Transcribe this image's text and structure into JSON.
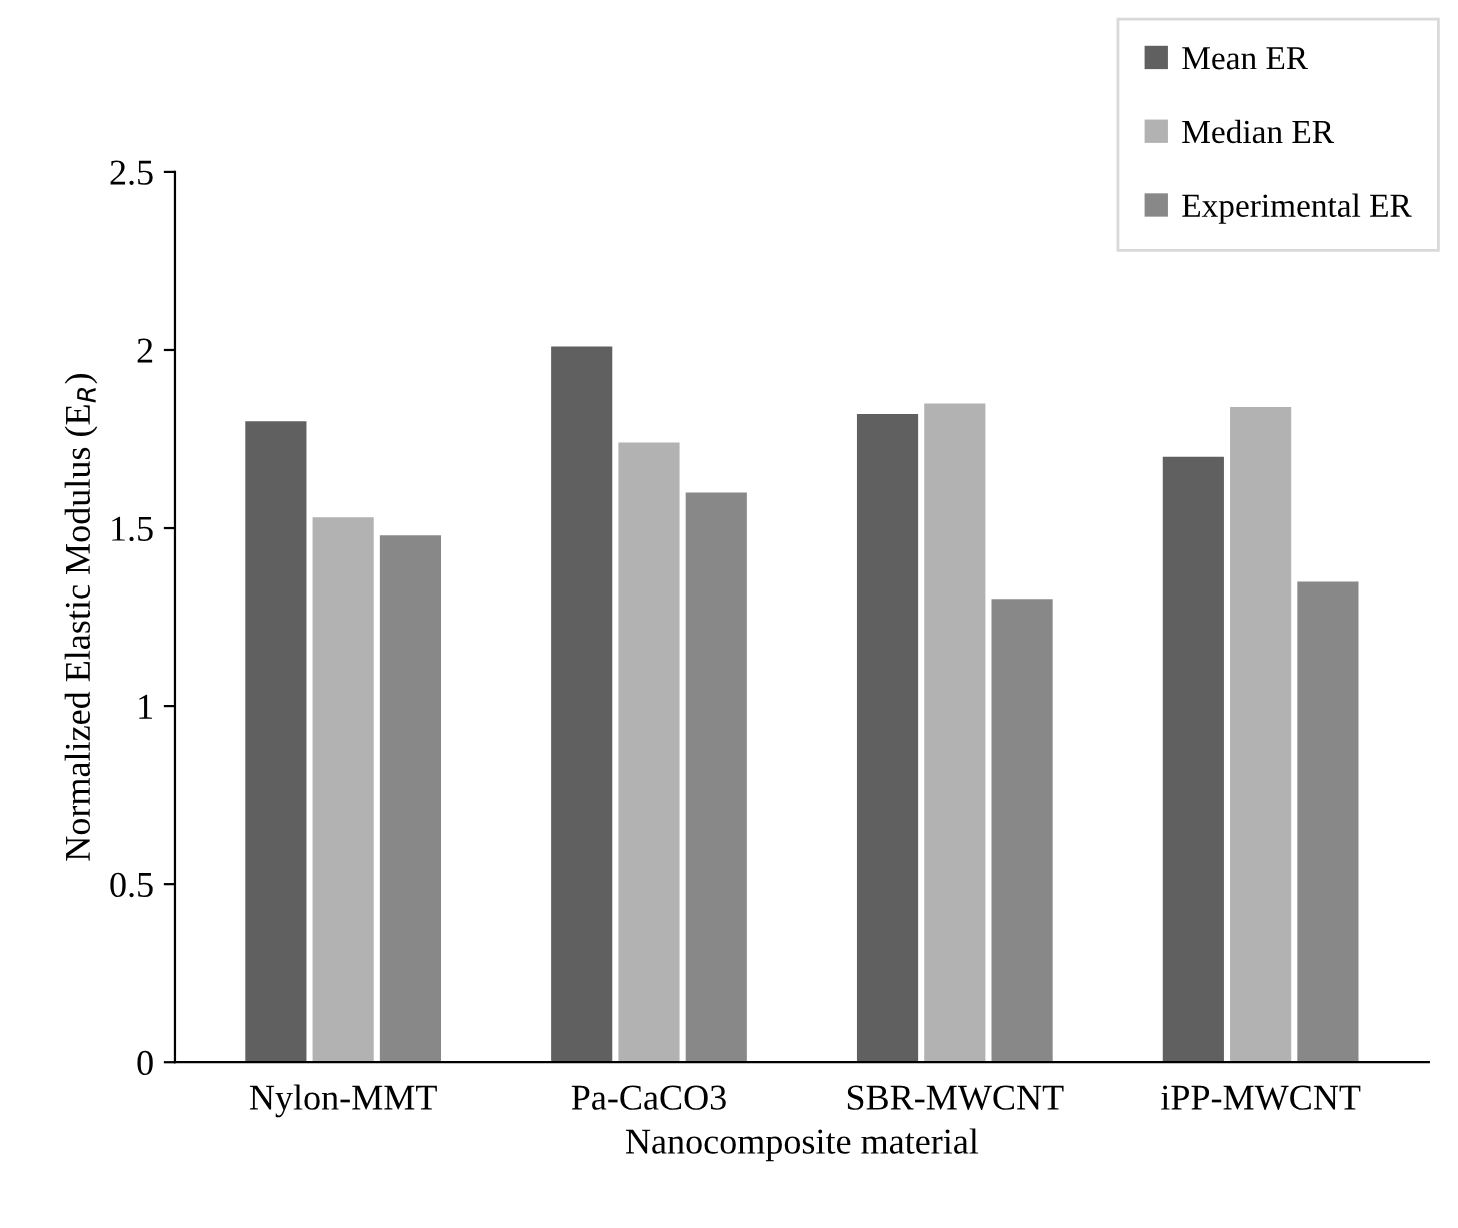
{
  "chart_data": {
    "type": "bar",
    "xlabel": "Nanocomposite material",
    "ylabel": "Normalized Elastic Modulus (E$_{R}$)",
    "categories": [
      "Nylon-MMT",
      "Pa-CaCO3",
      "SBR-MWCNT",
      "iPP-MWCNT"
    ],
    "series": [
      {
        "name": "Mean ER",
        "color": "#606060",
        "values": [
          1.8,
          2.01,
          1.82,
          1.7
        ]
      },
      {
        "name": "Median ER",
        "color": "#b2b2b2",
        "values": [
          1.53,
          1.74,
          1.85,
          1.84
        ]
      },
      {
        "name": "Experimental ER",
        "color": "#888888",
        "values": [
          1.48,
          1.6,
          1.3,
          1.35
        ]
      }
    ],
    "ylim": [
      0,
      2.5
    ],
    "yticks": [
      0,
      0.5,
      1,
      1.5,
      2,
      2.5
    ],
    "grid": false,
    "legend": "top right"
  }
}
